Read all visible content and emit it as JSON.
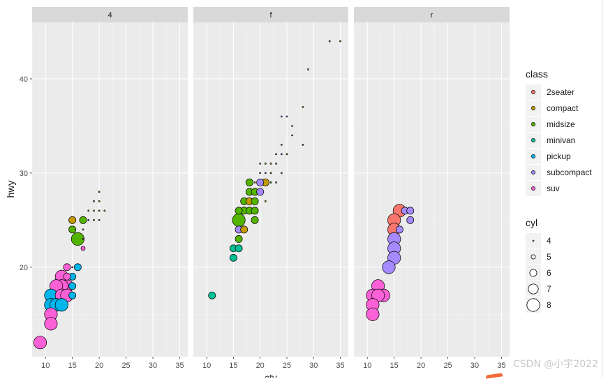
{
  "watermark": "CSDN @小宇2022",
  "chart_data": {
    "type": "scatter",
    "facet_by": "drv",
    "facets": [
      "4",
      "f",
      "r"
    ],
    "xlabel": "cty",
    "ylabel": "hwy",
    "xlim": [
      7.5,
      36.5
    ],
    "ylim": [
      10.5,
      46
    ],
    "x_ticks": [
      10,
      15,
      20,
      25,
      30,
      35
    ],
    "y_ticks": [
      20,
      30,
      40
    ],
    "grid": true,
    "legend_position": "right",
    "colors": {
      "panel_bg": "#ebebeb",
      "strip_bg": "#d9d9d9",
      "grid_major": "#ffffff",
      "grid_minor": "#f4f4f4"
    },
    "fill_legend": {
      "title": "class",
      "entries": [
        {
          "label": "2seater",
          "color": "#F8766D"
        },
        {
          "label": "compact",
          "color": "#C49A00"
        },
        {
          "label": "midsize",
          "color": "#53B400"
        },
        {
          "label": "minivan",
          "color": "#00C094"
        },
        {
          "label": "pickup",
          "color": "#00B6EB"
        },
        {
          "label": "subcompact",
          "color": "#A58AFF"
        },
        {
          "label": "suv",
          "color": "#FB61D7"
        }
      ]
    },
    "size_legend": {
      "title": "cyl",
      "entries": [
        {
          "label": "4",
          "value": 4
        },
        {
          "label": "5",
          "value": 5
        },
        {
          "label": "6",
          "value": 6
        },
        {
          "label": "7",
          "value": 7
        },
        {
          "label": "8",
          "value": 8
        }
      ]
    },
    "points": [
      {
        "facet": "4",
        "x": 18,
        "y": 26,
        "cls": "compact",
        "cyl": 4
      },
      {
        "facet": "4",
        "x": 19,
        "y": 26,
        "cls": "compact",
        "cyl": 4
      },
      {
        "facet": "4",
        "x": 19,
        "y": 27,
        "cls": "compact",
        "cyl": 4
      },
      {
        "facet": "4",
        "x": 20,
        "y": 26,
        "cls": "compact",
        "cyl": 4
      },
      {
        "facet": "4",
        "x": 20,
        "y": 28,
        "cls": "compact",
        "cyl": 4
      },
      {
        "facet": "4",
        "x": 19,
        "y": 25,
        "cls": "compact",
        "cyl": 4
      },
      {
        "facet": "4",
        "x": 21,
        "y": 26,
        "cls": "compact",
        "cyl": 4
      },
      {
        "facet": "4",
        "x": 20,
        "y": 27,
        "cls": "compact",
        "cyl": 4
      },
      {
        "facet": "4",
        "x": 20,
        "y": 25,
        "cls": "subcompact",
        "cyl": 4
      },
      {
        "facet": "4",
        "x": 18,
        "y": 25,
        "cls": "subcompact",
        "cyl": 4
      },
      {
        "facet": "4",
        "x": 17,
        "y": 24,
        "cls": "suv",
        "cyl": 4
      },
      {
        "facet": "4",
        "x": 17,
        "y": 23,
        "cls": "suv",
        "cyl": 4
      },
      {
        "facet": "4",
        "x": 15,
        "y": 25,
        "cls": "compact",
        "cyl": 6
      },
      {
        "facet": "4",
        "x": 15,
        "y": 24,
        "cls": "midsize",
        "cyl": 6
      },
      {
        "facet": "4",
        "x": 17,
        "y": 25,
        "cls": "midsize",
        "cyl": 6
      },
      {
        "facet": "4",
        "x": 16,
        "y": 23,
        "cls": "midsize",
        "cyl": 8
      },
      {
        "facet": "4",
        "x": 17,
        "y": 22,
        "cls": "suv",
        "cyl": 5
      },
      {
        "facet": "4",
        "x": 14,
        "y": 20,
        "cls": "suv",
        "cyl": 6
      },
      {
        "facet": "4",
        "x": 15,
        "y": 20,
        "cls": "suv",
        "cyl": 4
      },
      {
        "facet": "4",
        "x": 16,
        "y": 20,
        "cls": "pickup",
        "cyl": 6
      },
      {
        "facet": "4",
        "x": 15,
        "y": 19,
        "cls": "pickup",
        "cyl": 6
      },
      {
        "facet": "4",
        "x": 14,
        "y": 19,
        "cls": "suv",
        "cyl": 6
      },
      {
        "facet": "4",
        "x": 13,
        "y": 19,
        "cls": "suv",
        "cyl": 8
      },
      {
        "facet": "4",
        "x": 15,
        "y": 18,
        "cls": "pickup",
        "cyl": 6
      },
      {
        "facet": "4",
        "x": 14,
        "y": 18,
        "cls": "suv",
        "cyl": 8
      },
      {
        "facet": "4",
        "x": 13,
        "y": 18,
        "cls": "suv",
        "cyl": 8
      },
      {
        "facet": "4",
        "x": 12,
        "y": 18,
        "cls": "suv",
        "cyl": 8
      },
      {
        "facet": "4",
        "x": 11,
        "y": 17,
        "cls": "pickup",
        "cyl": 8
      },
      {
        "facet": "4",
        "x": 13,
        "y": 17,
        "cls": "suv",
        "cyl": 8
      },
      {
        "facet": "4",
        "x": 14,
        "y": 17,
        "cls": "suv",
        "cyl": 8
      },
      {
        "facet": "4",
        "x": 15,
        "y": 17,
        "cls": "pickup",
        "cyl": 6
      },
      {
        "facet": "4",
        "x": 11,
        "y": 16,
        "cls": "pickup",
        "cyl": 8
      },
      {
        "facet": "4",
        "x": 12,
        "y": 16,
        "cls": "pickup",
        "cyl": 8
      },
      {
        "facet": "4",
        "x": 13,
        "y": 16,
        "cls": "pickup",
        "cyl": 8
      },
      {
        "facet": "4",
        "x": 11,
        "y": 15,
        "cls": "suv",
        "cyl": 8
      },
      {
        "facet": "4",
        "x": 11,
        "y": 14,
        "cls": "suv",
        "cyl": 8
      },
      {
        "facet": "4",
        "x": 9,
        "y": 12,
        "cls": "suv",
        "cyl": 8
      },
      {
        "facet": "f",
        "x": 33,
        "y": 44,
        "cls": "compact",
        "cyl": 4
      },
      {
        "facet": "f",
        "x": 35,
        "y": 44,
        "cls": "compact",
        "cyl": 4
      },
      {
        "facet": "f",
        "x": 29,
        "y": 41,
        "cls": "subcompact",
        "cyl": 4
      },
      {
        "facet": "f",
        "x": 28,
        "y": 37,
        "cls": "compact",
        "cyl": 4
      },
      {
        "facet": "f",
        "x": 24,
        "y": 36,
        "cls": "subcompact",
        "cyl": 4
      },
      {
        "facet": "f",
        "x": 25,
        "y": 36,
        "cls": "subcompact",
        "cyl": 4
      },
      {
        "facet": "f",
        "x": 26,
        "y": 35,
        "cls": "compact",
        "cyl": 4
      },
      {
        "facet": "f",
        "x": 26,
        "y": 34,
        "cls": "compact",
        "cyl": 4
      },
      {
        "facet": "f",
        "x": 24,
        "y": 33,
        "cls": "compact",
        "cyl": 4
      },
      {
        "facet": "f",
        "x": 28,
        "y": 33,
        "cls": "subcompact",
        "cyl": 4
      },
      {
        "facet": "f",
        "x": 23,
        "y": 32,
        "cls": "compact",
        "cyl": 4
      },
      {
        "facet": "f",
        "x": 24,
        "y": 32,
        "cls": "subcompact",
        "cyl": 4
      },
      {
        "facet": "f",
        "x": 25,
        "y": 32,
        "cls": "compact",
        "cyl": 4
      },
      {
        "facet": "f",
        "x": 20,
        "y": 31,
        "cls": "compact",
        "cyl": 4
      },
      {
        "facet": "f",
        "x": 21,
        "y": 31,
        "cls": "midsize",
        "cyl": 4
      },
      {
        "facet": "f",
        "x": 22,
        "y": 31,
        "cls": "compact",
        "cyl": 4
      },
      {
        "facet": "f",
        "x": 23,
        "y": 31,
        "cls": "midsize",
        "cyl": 4
      },
      {
        "facet": "f",
        "x": 20,
        "y": 30,
        "cls": "compact",
        "cyl": 4
      },
      {
        "facet": "f",
        "x": 21,
        "y": 30,
        "cls": "subcompact",
        "cyl": 4
      },
      {
        "facet": "f",
        "x": 22,
        "y": 30,
        "cls": "compact",
        "cyl": 4
      },
      {
        "facet": "f",
        "x": 24,
        "y": 30,
        "cls": "subcompact",
        "cyl": 4
      },
      {
        "facet": "f",
        "x": 19,
        "y": 29,
        "cls": "compact",
        "cyl": 4
      },
      {
        "facet": "f",
        "x": 22,
        "y": 29,
        "cls": "midsize",
        "cyl": 4
      },
      {
        "facet": "f",
        "x": 23,
        "y": 29,
        "cls": "compact",
        "cyl": 4
      },
      {
        "facet": "f",
        "x": 21,
        "y": 29,
        "cls": "compact",
        "cyl": 6
      },
      {
        "facet": "f",
        "x": 20,
        "y": 29,
        "cls": "subcompact",
        "cyl": 6
      },
      {
        "facet": "f",
        "x": 18,
        "y": 29,
        "cls": "midsize",
        "cyl": 6
      },
      {
        "facet": "f",
        "x": 18,
        "y": 28,
        "cls": "midsize",
        "cyl": 6
      },
      {
        "facet": "f",
        "x": 19,
        "y": 28,
        "cls": "midsize",
        "cyl": 6
      },
      {
        "facet": "f",
        "x": 20,
        "y": 28,
        "cls": "subcompact",
        "cyl": 6
      },
      {
        "facet": "f",
        "x": 21,
        "y": 27,
        "cls": "compact",
        "cyl": 4
      },
      {
        "facet": "f",
        "x": 17,
        "y": 27,
        "cls": "midsize",
        "cyl": 6
      },
      {
        "facet": "f",
        "x": 18,
        "y": 27,
        "cls": "compact",
        "cyl": 6
      },
      {
        "facet": "f",
        "x": 19,
        "y": 27,
        "cls": "midsize",
        "cyl": 6
      },
      {
        "facet": "f",
        "x": 17,
        "y": 26,
        "cls": "midsize",
        "cyl": 6
      },
      {
        "facet": "f",
        "x": 16,
        "y": 26,
        "cls": "midsize",
        "cyl": 6
      },
      {
        "facet": "f",
        "x": 18,
        "y": 26,
        "cls": "midsize",
        "cyl": 6
      },
      {
        "facet": "f",
        "x": 19,
        "y": 26,
        "cls": "midsize",
        "cyl": 6
      },
      {
        "facet": "f",
        "x": 16,
        "y": 25,
        "cls": "midsize",
        "cyl": 8
      },
      {
        "facet": "f",
        "x": 19,
        "y": 25,
        "cls": "midsize",
        "cyl": 6
      },
      {
        "facet": "f",
        "x": 16,
        "y": 24,
        "cls": "subcompact",
        "cyl": 6
      },
      {
        "facet": "f",
        "x": 17,
        "y": 24,
        "cls": "compact",
        "cyl": 6
      },
      {
        "facet": "f",
        "x": 16,
        "y": 23,
        "cls": "midsize",
        "cyl": 6
      },
      {
        "facet": "f",
        "x": 15,
        "y": 22,
        "cls": "minivan",
        "cyl": 6
      },
      {
        "facet": "f",
        "x": 16,
        "y": 22,
        "cls": "minivan",
        "cyl": 6
      },
      {
        "facet": "f",
        "x": 15,
        "y": 21,
        "cls": "minivan",
        "cyl": 6
      },
      {
        "facet": "f",
        "x": 11,
        "y": 17,
        "cls": "minivan",
        "cyl": 6
      },
      {
        "facet": "r",
        "x": 16,
        "y": 26,
        "cls": "2seater",
        "cyl": 8
      },
      {
        "facet": "r",
        "x": 15,
        "y": 25,
        "cls": "2seater",
        "cyl": 8
      },
      {
        "facet": "r",
        "x": 15,
        "y": 24,
        "cls": "2seater",
        "cyl": 8
      },
      {
        "facet": "r",
        "x": 17,
        "y": 26,
        "cls": "subcompact",
        "cyl": 6
      },
      {
        "facet": "r",
        "x": 18,
        "y": 26,
        "cls": "subcompact",
        "cyl": 6
      },
      {
        "facet": "r",
        "x": 18,
        "y": 25,
        "cls": "subcompact",
        "cyl": 6
      },
      {
        "facet": "r",
        "x": 16,
        "y": 24,
        "cls": "subcompact",
        "cyl": 6
      },
      {
        "facet": "r",
        "x": 15,
        "y": 23,
        "cls": "subcompact",
        "cyl": 8
      },
      {
        "facet": "r",
        "x": 15,
        "y": 22,
        "cls": "subcompact",
        "cyl": 8
      },
      {
        "facet": "r",
        "x": 15,
        "y": 21,
        "cls": "subcompact",
        "cyl": 8
      },
      {
        "facet": "r",
        "x": 14,
        "y": 20,
        "cls": "subcompact",
        "cyl": 8
      },
      {
        "facet": "r",
        "x": 12,
        "y": 18,
        "cls": "suv",
        "cyl": 8
      },
      {
        "facet": "r",
        "x": 13,
        "y": 17,
        "cls": "suv",
        "cyl": 8
      },
      {
        "facet": "r",
        "x": 11,
        "y": 17,
        "cls": "suv",
        "cyl": 8
      },
      {
        "facet": "r",
        "x": 12,
        "y": 17,
        "cls": "suv",
        "cyl": 8
      },
      {
        "facet": "r",
        "x": 11,
        "y": 16,
        "cls": "suv",
        "cyl": 8
      },
      {
        "facet": "r",
        "x": 11,
        "y": 15,
        "cls": "suv",
        "cyl": 8
      }
    ]
  }
}
